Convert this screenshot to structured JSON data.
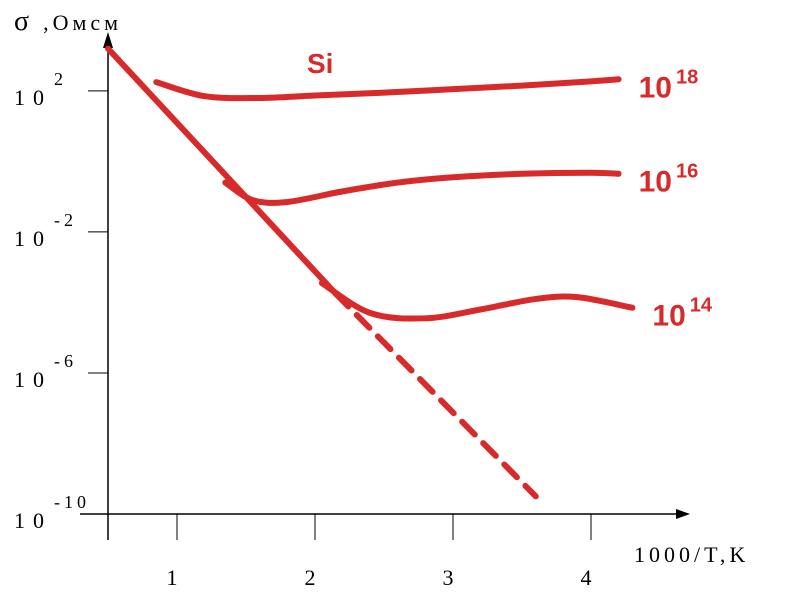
{
  "chart_data": {
    "type": "line",
    "title": "Si",
    "ylabel_symbol": "σ",
    "ylabel_unit": ",Омсм",
    "xlabel": "1000/T,K",
    "accent_color": "#d82a2a",
    "xlim": [
      0.5,
      4.5
    ],
    "ylim": [
      -10,
      3.5
    ],
    "y_scale": "log",
    "x_ticks": [
      {
        "value": 1,
        "label": "1"
      },
      {
        "value": 2,
        "label": "2"
      },
      {
        "value": 3,
        "label": "3"
      },
      {
        "value": 4,
        "label": "4"
      }
    ],
    "y_ticks": [
      {
        "value": 2,
        "base": "10",
        "exp": "2"
      },
      {
        "value": -2,
        "base": "10",
        "exp": "-2"
      },
      {
        "value": -6,
        "base": "10",
        "exp": "-6"
      },
      {
        "value": -10,
        "base": "10",
        "exp": "-10"
      }
    ],
    "series": [
      {
        "name": "10^18",
        "label_base": "10",
        "label_exp": "18",
        "dashed": false,
        "x": [
          0.85,
          1.2,
          1.6,
          2.0,
          2.5,
          3.0,
          3.5,
          4.0,
          4.2
        ],
        "y": [
          2.25,
          1.85,
          1.8,
          1.87,
          1.95,
          2.05,
          2.15,
          2.27,
          2.33
        ]
      },
      {
        "name": "10^16",
        "label_base": "10",
        "label_exp": "16",
        "dashed": false,
        "x": [
          1.35,
          1.55,
          1.8,
          2.2,
          2.6,
          3.0,
          3.5,
          4.0,
          4.2
        ],
        "y": [
          -0.6,
          -1.1,
          -1.15,
          -0.85,
          -0.6,
          -0.45,
          -0.35,
          -0.32,
          -0.35
        ]
      },
      {
        "name": "10^14",
        "label_base": "10",
        "label_exp": "14",
        "dashed": false,
        "x": [
          2.05,
          2.4,
          2.8,
          3.2,
          3.6,
          3.9,
          4.3
        ],
        "y": [
          -3.45,
          -4.3,
          -4.45,
          -4.2,
          -3.9,
          -3.85,
          -4.15
        ]
      },
      {
        "name": "intrinsic",
        "dashed": false,
        "x": [
          0.5,
          2.15
        ],
        "y": [
          3.2,
          -3.75
        ]
      },
      {
        "name": "intrinsic-extrapolated",
        "dashed": true,
        "x": [
          2.15,
          3.6
        ],
        "y": [
          -3.75,
          -9.5
        ]
      }
    ]
  }
}
